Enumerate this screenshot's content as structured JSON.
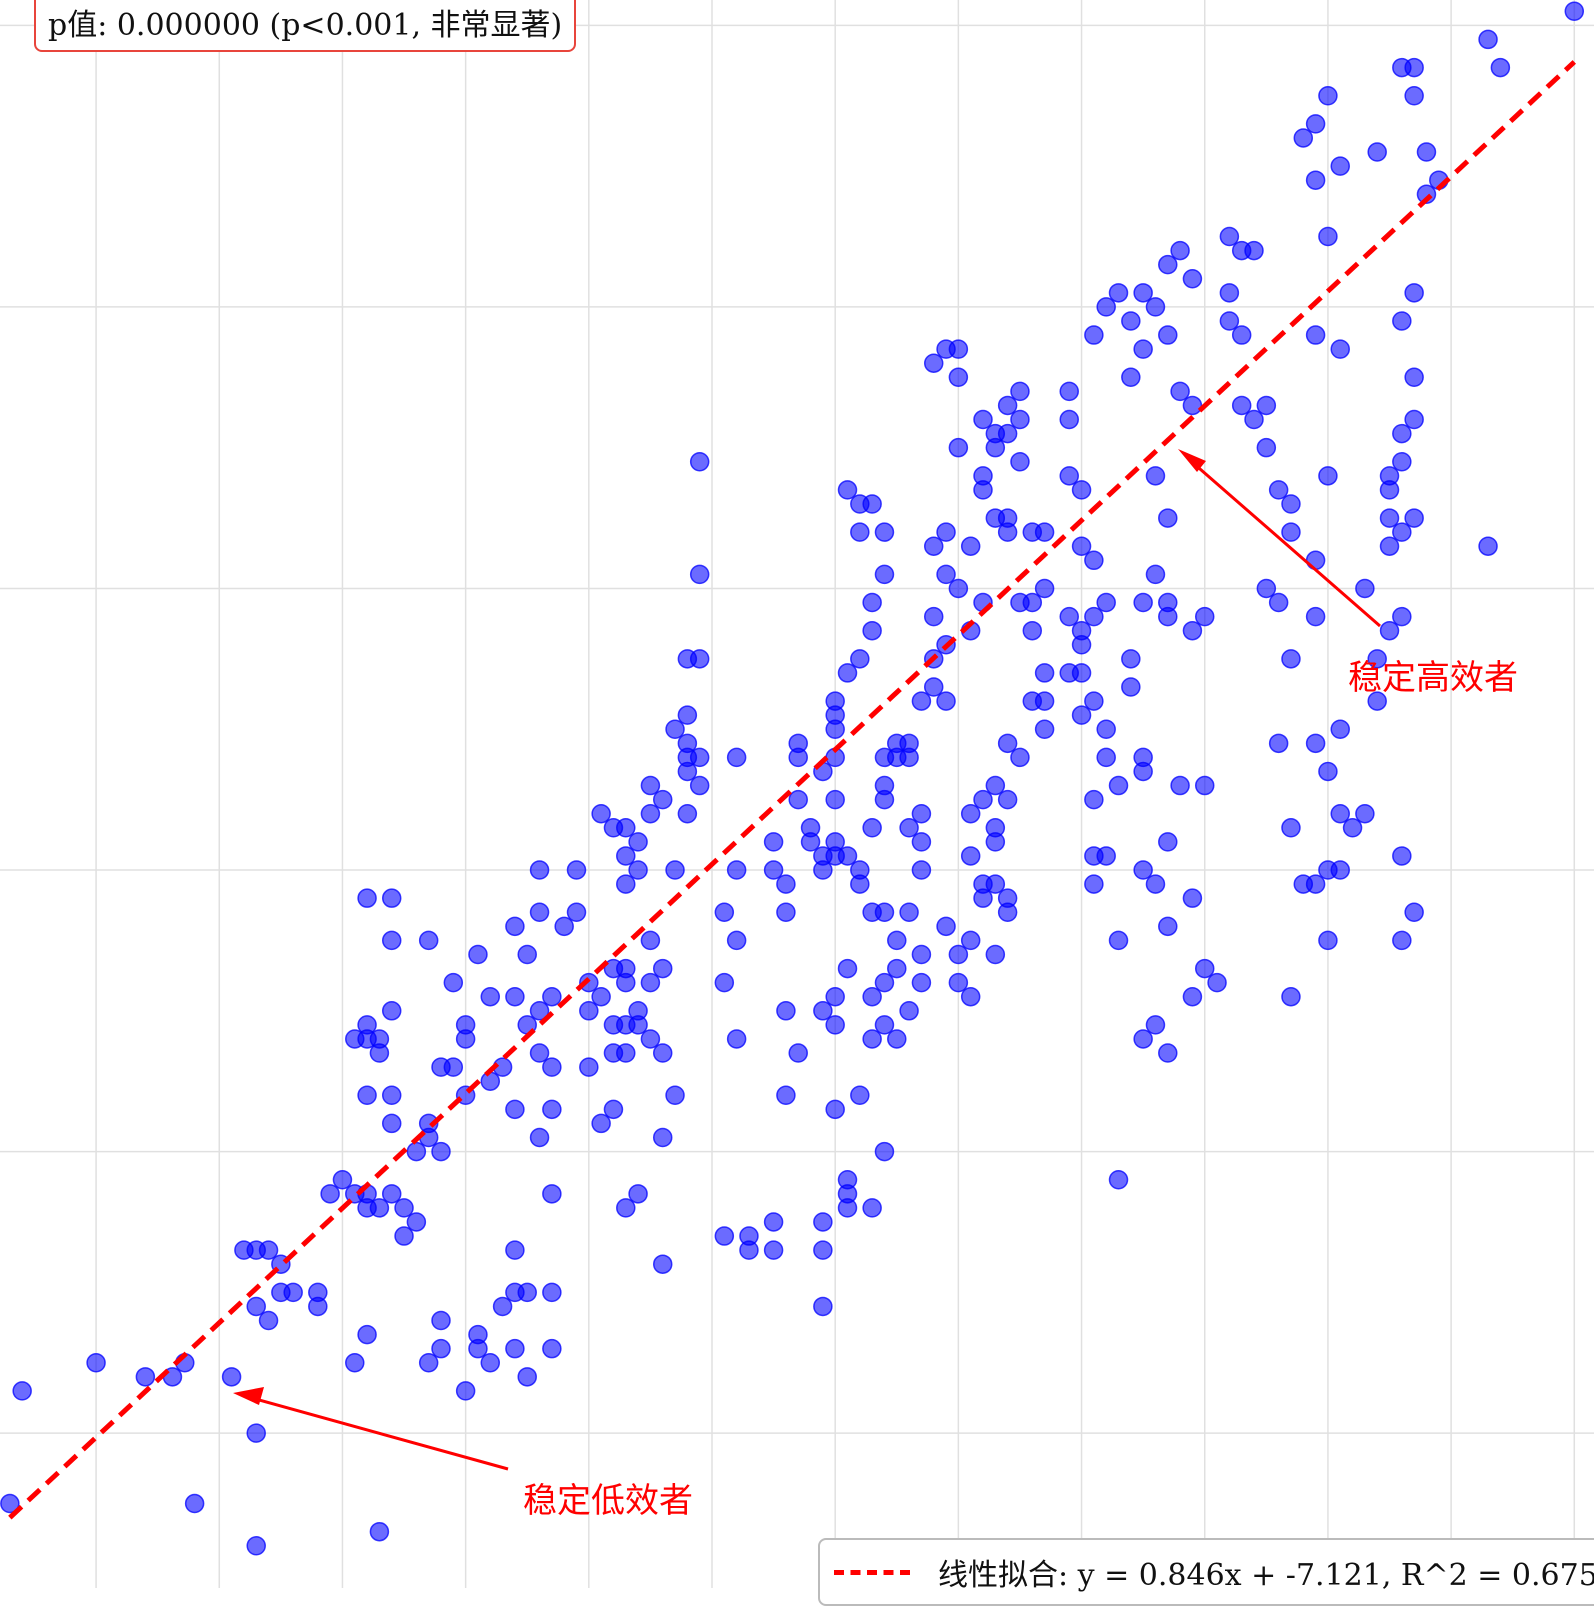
{
  "stats": {
    "p_text": "p值: 0.000000 (p<0.001, 非常显著)"
  },
  "annotations": {
    "high": "稳定高效者",
    "low": "稳定低效者"
  },
  "colors": {
    "points": "#0000ff",
    "fit_line": "#ff0000",
    "annotation": "#ff0000",
    "grid": "#e0e0e0"
  },
  "chart_data": {
    "type": "scatter",
    "grid": true,
    "legend_position": "bottom-right",
    "xlim": [
      0.11,
      6.58
    ],
    "ylim": [
      0.45,
      6.09
    ],
    "fit": {
      "slope": 0.846,
      "intercept": -7.121,
      "label": "线性拟合: y = 0.846x + -7.121, R^2 = 0.675"
    },
    "points": [
      [
        0.15,
        0.75
      ],
      [
        0.2,
        1.15
      ],
      [
        0.5,
        1.25
      ],
      [
        0.7,
        1.2
      ],
      [
        0.81,
        1.2
      ],
      [
        0.86,
        1.25
      ],
      [
        0.9,
        0.75
      ],
      [
        1.05,
        1.2
      ],
      [
        1.15,
        1.0
      ],
      [
        1.15,
        0.6
      ],
      [
        1.65,
        0.65
      ],
      [
        1.1,
        1.65
      ],
      [
        1.15,
        1.65
      ],
      [
        1.2,
        1.65
      ],
      [
        1.15,
        1.45
      ],
      [
        1.25,
        1.6
      ],
      [
        1.25,
        1.5
      ],
      [
        1.3,
        1.5
      ],
      [
        1.2,
        1.4
      ],
      [
        1.4,
        1.5
      ],
      [
        1.4,
        1.45
      ],
      [
        1.45,
        1.85
      ],
      [
        1.5,
        1.9
      ],
      [
        1.55,
        1.85
      ],
      [
        1.6,
        1.85
      ],
      [
        1.6,
        1.8
      ],
      [
        1.65,
        1.8
      ],
      [
        1.7,
        1.85
      ],
      [
        1.75,
        1.7
      ],
      [
        1.8,
        1.75
      ],
      [
        1.75,
        1.8
      ],
      [
        1.55,
        1.25
      ],
      [
        1.6,
        1.35
      ],
      [
        1.55,
        2.4
      ],
      [
        1.6,
        2.4
      ],
      [
        1.6,
        2.45
      ],
      [
        1.65,
        2.4
      ],
      [
        1.65,
        2.35
      ],
      [
        1.7,
        2.5
      ],
      [
        1.7,
        2.2
      ],
      [
        1.7,
        2.1
      ],
      [
        1.6,
        2.2
      ],
      [
        1.8,
        2.0
      ],
      [
        1.85,
        2.1
      ],
      [
        1.6,
        2.9
      ],
      [
        1.7,
        2.9
      ],
      [
        1.7,
        2.75
      ],
      [
        1.85,
        2.75
      ],
      [
        1.85,
        2.05
      ],
      [
        1.9,
        2.3
      ],
      [
        1.9,
        2.0
      ],
      [
        1.95,
        2.3
      ],
      [
        2.0,
        2.4
      ],
      [
        2.0,
        2.2
      ],
      [
        2.1,
        2.25
      ],
      [
        2.15,
        2.3
      ],
      [
        1.9,
        1.4
      ],
      [
        1.9,
        1.3
      ],
      [
        1.85,
        1.25
      ],
      [
        2.0,
        1.15
      ],
      [
        2.05,
        1.35
      ],
      [
        2.1,
        1.25
      ],
      [
        2.05,
        1.3
      ],
      [
        2.15,
        1.45
      ],
      [
        2.2,
        1.5
      ],
      [
        2.2,
        1.65
      ],
      [
        2.2,
        1.3
      ],
      [
        2.25,
        1.5
      ],
      [
        2.25,
        1.2
      ],
      [
        2.35,
        1.3
      ],
      [
        2.35,
        1.5
      ],
      [
        1.95,
        2.6
      ],
      [
        2.0,
        2.45
      ],
      [
        2.05,
        2.7
      ],
      [
        2.1,
        2.55
      ],
      [
        2.2,
        2.55
      ],
      [
        2.25,
        2.7
      ],
      [
        2.25,
        2.45
      ],
      [
        2.3,
        2.5
      ],
      [
        2.35,
        2.55
      ],
      [
        2.35,
        2.3
      ],
      [
        2.3,
        2.05
      ],
      [
        2.35,
        2.15
      ],
      [
        2.2,
        2.15
      ],
      [
        2.3,
        2.35
      ],
      [
        2.35,
        1.85
      ],
      [
        2.2,
        2.8
      ],
      [
        2.3,
        3.0
      ],
      [
        2.3,
        2.85
      ],
      [
        2.4,
        2.8
      ],
      [
        2.45,
        3.0
      ],
      [
        2.45,
        2.85
      ],
      [
        2.5,
        2.6
      ],
      [
        2.5,
        2.3
      ],
      [
        2.55,
        2.1
      ],
      [
        2.6,
        2.15
      ],
      [
        2.6,
        2.65
      ],
      [
        2.65,
        2.65
      ],
      [
        2.7,
        3.0
      ],
      [
        2.75,
        2.75
      ],
      [
        2.75,
        2.6
      ],
      [
        2.5,
        2.5
      ],
      [
        2.55,
        2.55
      ],
      [
        2.6,
        2.45
      ],
      [
        2.65,
        2.6
      ],
      [
        2.6,
        2.35
      ],
      [
        2.65,
        2.35
      ],
      [
        2.65,
        2.45
      ],
      [
        2.7,
        2.5
      ],
      [
        2.7,
        2.45
      ],
      [
        2.75,
        2.4
      ],
      [
        2.8,
        2.65
      ],
      [
        2.8,
        2.35
      ],
      [
        2.8,
        2.05
      ],
      [
        2.85,
        2.2
      ],
      [
        2.65,
        1.8
      ],
      [
        2.7,
        1.85
      ],
      [
        2.8,
        1.6
      ],
      [
        2.55,
        3.2
      ],
      [
        2.6,
        3.15
      ],
      [
        2.65,
        3.15
      ],
      [
        2.65,
        3.05
      ],
      [
        2.65,
        2.95
      ],
      [
        2.7,
        3.1
      ],
      [
        2.75,
        3.2
      ],
      [
        2.75,
        3.3
      ],
      [
        2.8,
        3.25
      ],
      [
        2.85,
        3.0
      ],
      [
        2.9,
        3.2
      ],
      [
        2.85,
        3.5
      ],
      [
        2.9,
        3.35
      ],
      [
        2.9,
        3.4
      ],
      [
        2.9,
        3.45
      ],
      [
        2.95,
        3.4
      ],
      [
        2.95,
        3.3
      ],
      [
        2.9,
        3.75
      ],
      [
        2.9,
        3.55
      ],
      [
        2.95,
        3.75
      ],
      [
        2.95,
        4.05
      ],
      [
        2.95,
        4.45
      ],
      [
        3.1,
        3.4
      ],
      [
        3.1,
        3.0
      ],
      [
        3.05,
        2.85
      ],
      [
        3.1,
        2.75
      ],
      [
        3.05,
        2.6
      ],
      [
        3.1,
        2.4
      ],
      [
        3.05,
        1.7
      ],
      [
        3.15,
        1.65
      ],
      [
        3.15,
        1.7
      ],
      [
        3.25,
        3.1
      ],
      [
        3.25,
        3.0
      ],
      [
        3.3,
        2.95
      ],
      [
        3.35,
        3.25
      ],
      [
        3.35,
        3.4
      ],
      [
        3.35,
        3.45
      ],
      [
        3.35,
        2.35
      ],
      [
        3.3,
        2.2
      ],
      [
        3.25,
        1.75
      ],
      [
        3.25,
        1.65
      ],
      [
        3.3,
        2.5
      ],
      [
        3.3,
        2.85
      ],
      [
        3.4,
        3.15
      ],
      [
        3.45,
        3.0
      ],
      [
        3.4,
        3.1
      ],
      [
        3.45,
        3.05
      ],
      [
        3.5,
        3.1
      ],
      [
        3.5,
        3.05
      ],
      [
        3.55,
        3.05
      ],
      [
        3.5,
        3.25
      ],
      [
        3.45,
        3.35
      ],
      [
        3.55,
        3.7
      ],
      [
        3.5,
        3.4
      ],
      [
        3.5,
        3.5
      ],
      [
        3.5,
        3.6
      ],
      [
        3.5,
        3.55
      ],
      [
        3.55,
        2.65
      ],
      [
        3.5,
        2.55
      ],
      [
        3.45,
        2.5
      ],
      [
        3.5,
        2.45
      ],
      [
        3.5,
        2.15
      ],
      [
        3.55,
        1.9
      ],
      [
        3.55,
        1.85
      ],
      [
        3.55,
        1.8
      ],
      [
        3.45,
        1.75
      ],
      [
        3.45,
        1.65
      ],
      [
        3.45,
        1.45
      ],
      [
        3.6,
        3.75
      ],
      [
        3.65,
        3.85
      ],
      [
        3.65,
        3.95
      ],
      [
        3.6,
        4.2
      ],
      [
        3.55,
        4.35
      ],
      [
        3.6,
        4.3
      ],
      [
        3.65,
        4.3
      ],
      [
        3.7,
        4.2
      ],
      [
        3.7,
        4.05
      ],
      [
        3.7,
        3.3
      ],
      [
        3.7,
        3.4
      ],
      [
        3.7,
        3.25
      ],
      [
        3.65,
        3.15
      ],
      [
        3.6,
        3.0
      ],
      [
        3.6,
        2.95
      ],
      [
        3.7,
        2.85
      ],
      [
        3.65,
        2.85
      ],
      [
        3.7,
        2.6
      ],
      [
        3.65,
        2.55
      ],
      [
        3.65,
        2.4
      ],
      [
        3.7,
        2.45
      ],
      [
        3.6,
        2.2
      ],
      [
        3.7,
        2.0
      ],
      [
        3.65,
        1.8
      ],
      [
        3.75,
        3.45
      ],
      [
        3.75,
        3.4
      ],
      [
        3.8,
        3.45
      ],
      [
        3.8,
        3.4
      ],
      [
        3.8,
        3.15
      ],
      [
        3.85,
        3.2
      ],
      [
        3.85,
        3.0
      ],
      [
        3.85,
        3.1
      ],
      [
        3.85,
        2.7
      ],
      [
        3.85,
        2.6
      ],
      [
        3.8,
        2.85
      ],
      [
        3.75,
        2.75
      ],
      [
        3.75,
        2.65
      ],
      [
        3.8,
        2.5
      ],
      [
        3.75,
        2.4
      ],
      [
        3.85,
        3.6
      ],
      [
        3.9,
        3.65
      ],
      [
        3.95,
        3.6
      ],
      [
        3.9,
        3.75
      ],
      [
        3.95,
        3.8
      ],
      [
        3.9,
        3.9
      ],
      [
        3.9,
        4.15
      ],
      [
        4.0,
        4.0
      ],
      [
        3.95,
        4.05
      ],
      [
        3.9,
        4.8
      ],
      [
        3.95,
        4.85
      ],
      [
        4.0,
        4.85
      ],
      [
        4.0,
        4.75
      ],
      [
        4.05,
        3.85
      ],
      [
        4.1,
        3.95
      ],
      [
        4.05,
        4.15
      ],
      [
        4.1,
        4.35
      ],
      [
        4.15,
        4.25
      ],
      [
        4.1,
        4.4
      ],
      [
        4.15,
        4.5
      ],
      [
        4.1,
        4.6
      ],
      [
        4.15,
        4.55
      ],
      [
        4.2,
        4.55
      ],
      [
        4.2,
        4.65
      ],
      [
        4.25,
        4.7
      ],
      [
        4.25,
        4.6
      ],
      [
        4.25,
        4.45
      ],
      [
        4.2,
        4.25
      ],
      [
        4.2,
        4.2
      ],
      [
        4.3,
        4.2
      ],
      [
        4.35,
        4.2
      ],
      [
        4.35,
        4.0
      ],
      [
        4.3,
        3.95
      ],
      [
        4.25,
        3.95
      ],
      [
        4.3,
        3.85
      ],
      [
        4.35,
        3.7
      ],
      [
        4.35,
        3.5
      ],
      [
        4.3,
        3.6
      ],
      [
        4.35,
        3.6
      ],
      [
        4.25,
        3.4
      ],
      [
        4.2,
        3.45
      ],
      [
        4.15,
        3.3
      ],
      [
        4.2,
        3.25
      ],
      [
        4.1,
        3.25
      ],
      [
        4.15,
        3.15
      ],
      [
        4.15,
        3.1
      ],
      [
        4.05,
        3.2
      ],
      [
        4.05,
        3.05
      ],
      [
        4.1,
        2.95
      ],
      [
        4.1,
        2.9
      ],
      [
        4.15,
        2.95
      ],
      [
        4.2,
        2.85
      ],
      [
        4.2,
        2.9
      ],
      [
        4.15,
        2.7
      ],
      [
        4.05,
        2.55
      ],
      [
        4.0,
        2.7
      ],
      [
        4.0,
        2.6
      ],
      [
        3.95,
        2.8
      ],
      [
        4.05,
        2.75
      ],
      [
        4.0,
        4.5
      ],
      [
        3.95,
        4.2
      ],
      [
        4.45,
        4.7
      ],
      [
        4.45,
        4.6
      ],
      [
        4.45,
        4.4
      ],
      [
        4.5,
        4.35
      ],
      [
        4.55,
        3.9
      ],
      [
        4.6,
        3.95
      ],
      [
        4.55,
        4.1
      ],
      [
        4.5,
        4.15
      ],
      [
        4.45,
        3.9
      ],
      [
        4.5,
        3.8
      ],
      [
        4.55,
        3.25
      ],
      [
        4.6,
        3.05
      ],
      [
        4.55,
        3.05
      ],
      [
        4.5,
        3.55
      ],
      [
        4.55,
        3.6
      ],
      [
        4.5,
        3.85
      ],
      [
        4.45,
        3.7
      ],
      [
        4.5,
        3.7
      ],
      [
        4.55,
        4.9
      ],
      [
        4.6,
        5.0
      ],
      [
        4.7,
        4.95
      ],
      [
        4.65,
        5.05
      ],
      [
        4.75,
        5.05
      ],
      [
        4.8,
        5.0
      ],
      [
        4.85,
        4.9
      ],
      [
        4.85,
        5.15
      ],
      [
        4.9,
        5.2
      ],
      [
        4.95,
        5.1
      ],
      [
        4.9,
        4.7
      ],
      [
        4.95,
        4.65
      ],
      [
        4.7,
        4.75
      ],
      [
        4.75,
        4.85
      ],
      [
        4.8,
        4.4
      ],
      [
        4.85,
        4.25
      ],
      [
        4.8,
        4.05
      ],
      [
        4.85,
        3.95
      ],
      [
        4.85,
        3.9
      ],
      [
        4.75,
        3.95
      ],
      [
        4.7,
        3.75
      ],
      [
        4.7,
        3.65
      ],
      [
        4.75,
        3.4
      ],
      [
        4.75,
        3.35
      ],
      [
        4.65,
        3.3
      ],
      [
        4.6,
        3.4
      ],
      [
        4.6,
        3.5
      ],
      [
        4.75,
        3.0
      ],
      [
        4.65,
        2.75
      ],
      [
        4.55,
        2.95
      ],
      [
        4.95,
        3.85
      ],
      [
        5.0,
        3.9
      ],
      [
        4.85,
        3.1
      ],
      [
        4.8,
        2.95
      ],
      [
        4.9,
        3.3
      ],
      [
        5.0,
        3.3
      ],
      [
        5.0,
        2.65
      ],
      [
        4.95,
        2.55
      ],
      [
        5.05,
        2.6
      ],
      [
        4.85,
        2.8
      ],
      [
        4.95,
        2.9
      ],
      [
        4.85,
        2.35
      ],
      [
        4.75,
        2.4
      ],
      [
        4.8,
        2.45
      ],
      [
        4.65,
        1.9
      ],
      [
        5.1,
        5.25
      ],
      [
        5.15,
        5.2
      ],
      [
        5.2,
        5.2
      ],
      [
        5.1,
        5.05
      ],
      [
        5.1,
        4.95
      ],
      [
        5.15,
        4.9
      ],
      [
        5.15,
        4.65
      ],
      [
        5.2,
        4.6
      ],
      [
        5.25,
        4.65
      ],
      [
        5.25,
        4.5
      ],
      [
        5.3,
        4.35
      ],
      [
        5.35,
        4.3
      ],
      [
        5.35,
        4.2
      ],
      [
        5.25,
        4.0
      ],
      [
        5.3,
        3.95
      ],
      [
        5.35,
        3.75
      ],
      [
        5.3,
        3.45
      ],
      [
        5.45,
        3.45
      ],
      [
        5.35,
        3.15
      ],
      [
        5.5,
        3.0
      ],
      [
        5.5,
        2.75
      ],
      [
        5.45,
        2.95
      ],
      [
        5.35,
        2.55
      ],
      [
        5.4,
        5.6
      ],
      [
        5.45,
        5.45
      ],
      [
        5.55,
        5.5
      ],
      [
        5.5,
        5.75
      ],
      [
        5.45,
        5.65
      ],
      [
        5.5,
        5.25
      ],
      [
        5.55,
        4.85
      ],
      [
        5.45,
        4.9
      ],
      [
        5.5,
        4.4
      ],
      [
        5.45,
        4.1
      ],
      [
        5.45,
        3.9
      ],
      [
        5.55,
        3.5
      ],
      [
        5.5,
        3.35
      ],
      [
        5.4,
        2.95
      ],
      [
        5.55,
        3.0
      ],
      [
        5.55,
        3.2
      ],
      [
        5.6,
        3.15
      ],
      [
        5.65,
        4.0
      ],
      [
        5.7,
        3.75
      ],
      [
        5.75,
        4.15
      ],
      [
        5.75,
        4.25
      ],
      [
        5.75,
        4.4
      ],
      [
        5.75,
        4.35
      ],
      [
        5.8,
        4.2
      ],
      [
        5.85,
        5.85
      ],
      [
        5.8,
        5.85
      ],
      [
        5.7,
        5.55
      ],
      [
        5.85,
        5.75
      ],
      [
        5.9,
        5.55
      ],
      [
        5.95,
        5.45
      ],
      [
        5.9,
        5.4
      ],
      [
        5.85,
        5.05
      ],
      [
        5.8,
        4.95
      ],
      [
        5.85,
        4.25
      ],
      [
        5.8,
        4.45
      ],
      [
        5.8,
        4.55
      ],
      [
        5.85,
        4.75
      ],
      [
        5.85,
        4.6
      ],
      [
        5.75,
        3.85
      ],
      [
        5.8,
        3.9
      ],
      [
        5.7,
        3.6
      ],
      [
        5.65,
        3.2
      ],
      [
        5.8,
        3.05
      ],
      [
        5.85,
        2.85
      ],
      [
        5.8,
        2.75
      ],
      [
        6.15,
        5.95
      ],
      [
        6.2,
        5.85
      ],
      [
        6.15,
        4.15
      ],
      [
        6.5,
        6.05
      ]
    ]
  }
}
